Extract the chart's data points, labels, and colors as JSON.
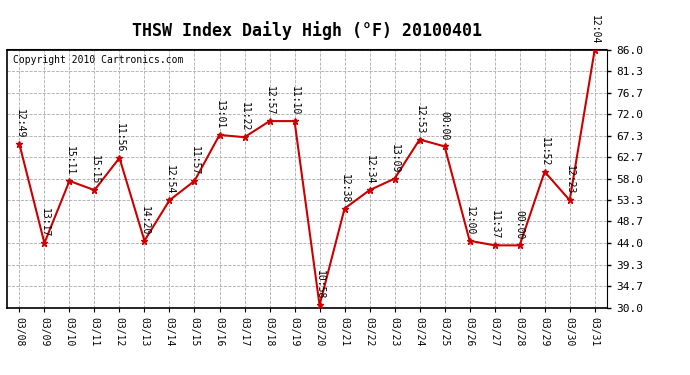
{
  "title": "THSW Index Daily High (°F) 20100401",
  "copyright": "Copyright 2010 Cartronics.com",
  "dates": [
    "03/08",
    "03/09",
    "03/10",
    "03/11",
    "03/12",
    "03/13",
    "03/14",
    "03/15",
    "03/16",
    "03/17",
    "03/18",
    "03/19",
    "03/20",
    "03/21",
    "03/22",
    "03/23",
    "03/24",
    "03/25",
    "03/26",
    "03/27",
    "03/28",
    "03/29",
    "03/30",
    "03/31"
  ],
  "values": [
    65.5,
    44.0,
    57.5,
    55.5,
    62.5,
    44.5,
    53.3,
    57.5,
    67.5,
    67.0,
    70.5,
    70.5,
    30.5,
    51.5,
    55.5,
    58.0,
    66.5,
    65.0,
    44.5,
    43.5,
    43.5,
    59.5,
    53.3,
    86.0
  ],
  "time_labels": [
    "12:49",
    "13:17",
    "15:11",
    "15:15",
    "11:56",
    "14:20",
    "12:54",
    "11:57",
    "13:01",
    "11:22",
    "12:57",
    "11:10",
    "10:58",
    "12:38",
    "12:34",
    "13:09",
    "12:53",
    "00:00",
    "12:00",
    "11:37",
    "00:00",
    "11:52",
    "12:23",
    "12:04"
  ],
  "ylim_min": 30.0,
  "ylim_max": 86.0,
  "yticks": [
    30.0,
    34.7,
    39.3,
    44.0,
    48.7,
    53.3,
    58.0,
    62.7,
    67.3,
    72.0,
    76.7,
    81.3,
    86.0
  ],
  "line_color": "#cc0000",
  "marker_color": "#cc0000",
  "bg_color": "#ffffff",
  "grid_color": "#aaaaaa",
  "title_fontsize": 12,
  "copyright_fontsize": 7,
  "label_fontsize": 7
}
